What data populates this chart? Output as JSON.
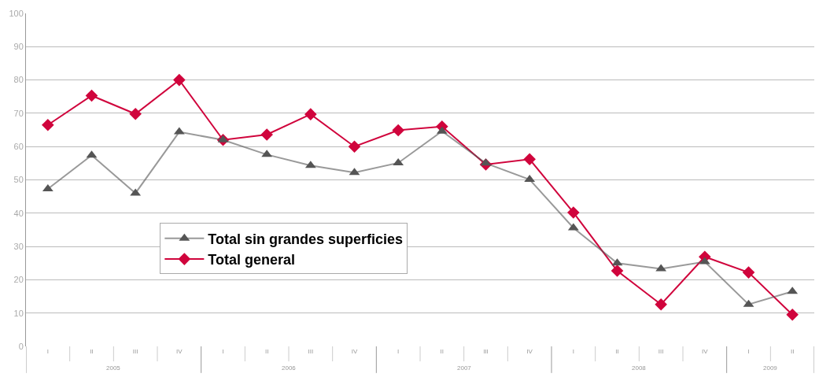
{
  "chart_data": {
    "type": "line",
    "categories": [
      "I",
      "II",
      "III",
      "IV",
      "I",
      "II",
      "III",
      "IV",
      "I",
      "II",
      "III",
      "IV",
      "I",
      "II",
      "III",
      "IV",
      "I",
      "II"
    ],
    "annotations": [
      "2005",
      "2006",
      "2007",
      "2008",
      "2009"
    ],
    "series": [
      {
        "name": "Total sin grandes superficies",
        "color": "#555555",
        "marker": "triangle",
        "values": [
          47.3,
          57.4,
          46,
          64.4,
          62,
          57.6,
          54.3,
          52.2,
          55.1,
          64.6,
          55,
          50.1,
          35.6,
          25,
          23.3,
          25.4,
          12.6,
          16.5
        ]
      },
      {
        "name": "Total general",
        "color": "#d0043c",
        "marker": "diamond",
        "values": [
          66.5,
          75.3,
          69.8,
          80,
          62,
          63.6,
          69.7,
          60,
          64.9,
          66,
          54.6,
          56.2,
          40.2,
          22.7,
          12.6,
          26.9,
          22.2,
          9.5
        ]
      }
    ],
    "ylim": [
      0,
      100
    ],
    "yticks": [
      0,
      10,
      20,
      30,
      40,
      50,
      60,
      70,
      80,
      90,
      100
    ],
    "grid": "y",
    "legend": "bottom left",
    "line_style": "solid"
  }
}
